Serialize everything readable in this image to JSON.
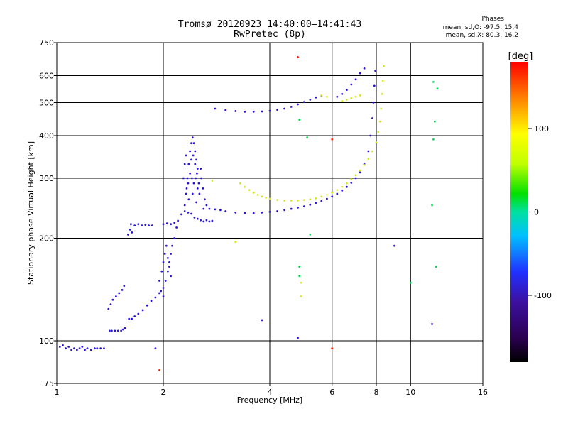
{
  "chart_data": {
    "type": "scatter",
    "title": "Tromsø 20120923 14:40:00–14:41:43",
    "subtitle": "RwPretec (8p)",
    "xlabel": "Frequency [MHz]",
    "ylabel": "Stationary phase Virtual Height [km]",
    "x_scale": "log",
    "y_scale": "log",
    "xlim": [
      1,
      16
    ],
    "ylim": [
      75,
      750
    ],
    "x_ticks": [
      1,
      2,
      4,
      6,
      8,
      10,
      16
    ],
    "y_ticks": [
      75,
      100,
      200,
      300,
      400,
      500,
      600,
      750
    ],
    "grid": true,
    "colorbar": {
      "label": "[deg]",
      "range": [
        -180,
        180
      ],
      "ticks": [
        100,
        0,
        -100
      ]
    },
    "phase_stats": {
      "heading": "Phases",
      "o_line": "mean, sd,O: -97.5, 15.4",
      "x_line": "mean, sd,X:  80.3, 16.2"
    },
    "series": [
      {
        "phase": -110,
        "points": [
          [
            1.02,
            96
          ],
          [
            1.04,
            97
          ],
          [
            1.06,
            95
          ],
          [
            1.08,
            96
          ],
          [
            1.1,
            94
          ],
          [
            1.12,
            95
          ],
          [
            1.14,
            94
          ],
          [
            1.16,
            95
          ],
          [
            1.18,
            96
          ],
          [
            1.2,
            94
          ],
          [
            1.22,
            95
          ],
          [
            1.25,
            94
          ],
          [
            1.28,
            95
          ],
          [
            1.3,
            95
          ],
          [
            1.33,
            95
          ],
          [
            1.36,
            95
          ],
          [
            1.41,
            107
          ],
          [
            1.43,
            107
          ],
          [
            1.46,
            107
          ],
          [
            1.49,
            107
          ],
          [
            1.52,
            107
          ],
          [
            1.54,
            108
          ],
          [
            1.56,
            109
          ],
          [
            1.4,
            124
          ],
          [
            1.42,
            128
          ],
          [
            1.44,
            132
          ],
          [
            1.47,
            135
          ],
          [
            1.5,
            138
          ],
          [
            1.53,
            141
          ],
          [
            1.55,
            145
          ],
          [
            1.6,
            116
          ],
          [
            1.63,
            116
          ],
          [
            1.66,
            118
          ],
          [
            1.7,
            120
          ],
          [
            1.75,
            123
          ],
          [
            1.8,
            127
          ],
          [
            1.85,
            131
          ],
          [
            1.9,
            134
          ],
          [
            1.95,
            138
          ],
          [
            2.0,
            143
          ],
          [
            2.03,
            150
          ],
          [
            2.06,
            160
          ],
          [
            2.08,
            170
          ],
          [
            2.1,
            180
          ],
          [
            2.12,
            190
          ],
          [
            2.15,
            200
          ],
          [
            2.18,
            215
          ],
          [
            1.59,
            205
          ],
          [
            1.61,
            212
          ],
          [
            1.62,
            220
          ],
          [
            1.63,
            208
          ],
          [
            1.66,
            218
          ],
          [
            1.7,
            220
          ],
          [
            1.74,
            218
          ],
          [
            1.78,
            219
          ],
          [
            1.82,
            218
          ],
          [
            1.86,
            218
          ],
          [
            1.95,
            150
          ],
          [
            1.98,
            160
          ],
          [
            2.0,
            170
          ],
          [
            2.02,
            180
          ],
          [
            2.04,
            190
          ],
          [
            2.06,
            175
          ],
          [
            2.08,
            165
          ],
          [
            2.1,
            155
          ],
          [
            1.97,
            140
          ],
          [
            2.0,
            135
          ],
          [
            2.0,
            220
          ],
          [
            2.05,
            221
          ],
          [
            2.1,
            220
          ],
          [
            2.15,
            222
          ],
          [
            2.2,
            225
          ],
          [
            2.25,
            235
          ],
          [
            2.3,
            240
          ],
          [
            2.35,
            238
          ],
          [
            2.4,
            236
          ],
          [
            2.45,
            230
          ],
          [
            2.5,
            228
          ],
          [
            2.55,
            226
          ],
          [
            2.6,
            224
          ],
          [
            2.65,
            226
          ],
          [
            2.7,
            224
          ],
          [
            2.75,
            225
          ],
          [
            2.3,
            250
          ],
          [
            2.32,
            270
          ],
          [
            2.34,
            300
          ],
          [
            2.36,
            330
          ],
          [
            2.38,
            360
          ],
          [
            2.4,
            380
          ],
          [
            2.42,
            395
          ],
          [
            2.44,
            380
          ],
          [
            2.46,
            360
          ],
          [
            2.48,
            340
          ],
          [
            2.5,
            320
          ],
          [
            2.35,
            290
          ],
          [
            2.38,
            310
          ],
          [
            2.41,
            300
          ],
          [
            2.44,
            290
          ],
          [
            2.47,
            300
          ],
          [
            2.5,
            280
          ],
          [
            2.53,
            270
          ],
          [
            2.56,
            300
          ],
          [
            2.59,
            280
          ],
          [
            2.62,
            260
          ],
          [
            2.65,
            250
          ],
          [
            2.4,
            340
          ],
          [
            2.43,
            350
          ],
          [
            2.46,
            330
          ],
          [
            2.49,
            310
          ],
          [
            2.52,
            290
          ],
          [
            2.55,
            320
          ],
          [
            2.33,
            280
          ],
          [
            2.36,
            260
          ],
          [
            2.42,
            270
          ],
          [
            2.48,
            255
          ],
          [
            2.28,
            300
          ],
          [
            2.3,
            330
          ],
          [
            2.32,
            350
          ],
          [
            2.6,
            244
          ],
          [
            2.7,
            244
          ],
          [
            2.8,
            243
          ],
          [
            2.9,
            242
          ],
          [
            3.0,
            240
          ],
          [
            3.2,
            238
          ],
          [
            3.4,
            237
          ],
          [
            3.6,
            237
          ],
          [
            3.8,
            238
          ],
          [
            4.0,
            239
          ],
          [
            4.2,
            240
          ],
          [
            4.4,
            242
          ],
          [
            4.6,
            244
          ],
          [
            4.8,
            246
          ],
          [
            5.0,
            248
          ],
          [
            5.2,
            251
          ],
          [
            5.4,
            254
          ],
          [
            5.6,
            257
          ],
          [
            5.8,
            261
          ],
          [
            6.0,
            265
          ],
          [
            6.2,
            270
          ],
          [
            6.4,
            276
          ],
          [
            6.6,
            283
          ],
          [
            6.8,
            291
          ],
          [
            7.0,
            300
          ],
          [
            7.2,
            312
          ],
          [
            7.4,
            330
          ],
          [
            7.6,
            360
          ],
          [
            7.7,
            400
          ],
          [
            7.8,
            450
          ],
          [
            7.85,
            500
          ],
          [
            7.9,
            560
          ],
          [
            7.95,
            620
          ],
          [
            2.8,
            480
          ],
          [
            3.0,
            475
          ],
          [
            3.2,
            472
          ],
          [
            3.4,
            470
          ],
          [
            3.6,
            470
          ],
          [
            3.8,
            471
          ],
          [
            4.0,
            473
          ],
          [
            4.2,
            476
          ],
          [
            4.4,
            480
          ],
          [
            4.6,
            486
          ],
          [
            4.8,
            494
          ],
          [
            5.0,
            502
          ],
          [
            5.2,
            510
          ],
          [
            5.4,
            518
          ],
          [
            5.6,
            524
          ],
          [
            6.2,
            520
          ],
          [
            6.4,
            530
          ],
          [
            6.6,
            545
          ],
          [
            6.8,
            565
          ],
          [
            7.0,
            585
          ],
          [
            7.2,
            610
          ],
          [
            7.4,
            630
          ],
          [
            1.9,
            95
          ],
          [
            4.8,
            102
          ],
          [
            3.8,
            115
          ],
          [
            11.5,
            112
          ],
          [
            9.0,
            190
          ]
        ]
      },
      {
        "phase": 100,
        "points": [
          [
            3.3,
            290
          ],
          [
            3.4,
            283
          ],
          [
            3.5,
            277
          ],
          [
            3.6,
            272
          ],
          [
            3.7,
            268
          ],
          [
            3.8,
            265
          ],
          [
            3.9,
            263
          ],
          [
            4.0,
            261
          ],
          [
            4.2,
            259
          ],
          [
            4.4,
            258
          ],
          [
            4.6,
            258
          ],
          [
            4.8,
            258
          ],
          [
            5.0,
            259
          ],
          [
            5.2,
            260
          ],
          [
            5.4,
            262
          ],
          [
            5.6,
            265
          ],
          [
            5.8,
            268
          ],
          [
            6.0,
            272
          ],
          [
            6.2,
            277
          ],
          [
            6.4,
            283
          ],
          [
            6.6,
            290
          ],
          [
            6.8,
            298
          ],
          [
            7.0,
            306
          ],
          [
            7.2,
            316
          ],
          [
            7.4,
            328
          ],
          [
            7.6,
            342
          ],
          [
            7.8,
            360
          ],
          [
            8.0,
            382
          ],
          [
            8.1,
            410
          ],
          [
            8.2,
            440
          ],
          [
            8.25,
            480
          ],
          [
            8.3,
            530
          ],
          [
            8.35,
            580
          ],
          [
            8.4,
            640
          ],
          [
            6.4,
            505
          ],
          [
            6.6,
            510
          ],
          [
            6.8,
            515
          ],
          [
            7.0,
            520
          ],
          [
            7.2,
            525
          ],
          [
            5.6,
            525
          ],
          [
            5.8,
            520
          ],
          [
            4.9,
            148
          ],
          [
            4.9,
            135
          ],
          [
            2.75,
            295
          ],
          [
            3.2,
            195
          ]
        ]
      },
      {
        "phase": 170,
        "points": [
          [
            4.8,
            680
          ],
          [
            6.0,
            95
          ],
          [
            1.95,
            82
          ],
          [
            6.0,
            390
          ]
        ]
      },
      {
        "phase": 10,
        "points": [
          [
            4.85,
            165
          ],
          [
            4.85,
            155
          ],
          [
            5.2,
            205
          ],
          [
            11.5,
            250
          ],
          [
            11.8,
            165
          ],
          [
            10.0,
            148
          ],
          [
            11.6,
            575
          ],
          [
            11.9,
            550
          ],
          [
            11.7,
            440
          ],
          [
            11.6,
            390
          ],
          [
            4.85,
            445
          ],
          [
            5.1,
            395
          ]
        ]
      }
    ]
  }
}
